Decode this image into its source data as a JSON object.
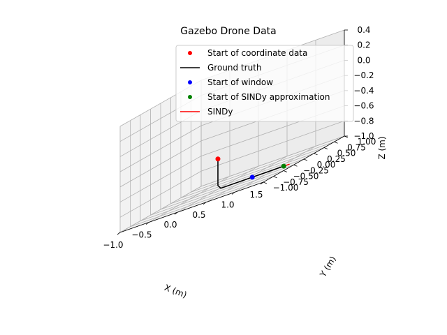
{
  "chart_data": {
    "type": "line",
    "projection": "3d",
    "title": "Gazebo Drone Data",
    "xlabel": "X (m)",
    "ylabel": "Y (m)",
    "zlabel": "Z (m)",
    "xlim": [
      -1.0,
      1.5
    ],
    "ylim": [
      -1.0,
      1.0
    ],
    "zlim": [
      -1.0,
      0.4
    ],
    "xticks": [
      "−1.0",
      "−0.5",
      "0.0",
      "0.5",
      "1.0",
      "1.5"
    ],
    "yticks": [
      "−1.00",
      "−0.75",
      "−0.50",
      "−0.25",
      "0.00",
      "0.25",
      "0.50",
      "0.75",
      "1.00"
    ],
    "zticks": [
      "−1.0",
      "−0.8",
      "−0.6",
      "−0.4",
      "−0.2",
      "0.0",
      "0.2",
      "0.4"
    ],
    "grid": true,
    "legend_position": "top-right",
    "legend": [
      {
        "label": "Start of coordinate data",
        "kind": "point",
        "color": "#ff0000"
      },
      {
        "label": "Ground truth",
        "kind": "line",
        "color": "#000000"
      },
      {
        "label": "Start of window",
        "kind": "point",
        "color": "#0000ff"
      },
      {
        "label": "Start of SINDy approximation",
        "kind": "point",
        "color": "#008000"
      },
      {
        "label": "SINDy",
        "kind": "line",
        "color": "#ff0000"
      }
    ],
    "series": [
      {
        "name": "Ground truth",
        "color": "#000000",
        "points": [
          [
            0,
            0,
            -0.6
          ],
          [
            0,
            0,
            -0.95
          ],
          [
            0.05,
            0,
            -1.0
          ],
          [
            0.5,
            0,
            -1.0
          ],
          [
            1.0,
            0,
            -1.0
          ],
          [
            1.15,
            0,
            -1.0
          ]
        ]
      },
      {
        "name": "SINDy",
        "color": "#ff0000",
        "points": [
          [
            1.15,
            0,
            -1.0
          ],
          [
            1.25,
            0,
            -1.0
          ]
        ]
      }
    ],
    "markers": [
      {
        "name": "Start of coordinate data",
        "color": "#ff0000",
        "point": [
          0,
          0,
          -0.6
        ]
      },
      {
        "name": "Start of window",
        "color": "#0000ff",
        "point": [
          0.6,
          0,
          -1.0
        ]
      },
      {
        "name": "Start of SINDy approximation",
        "color": "#008000",
        "point": [
          1.15,
          0,
          -1.0
        ]
      }
    ]
  }
}
